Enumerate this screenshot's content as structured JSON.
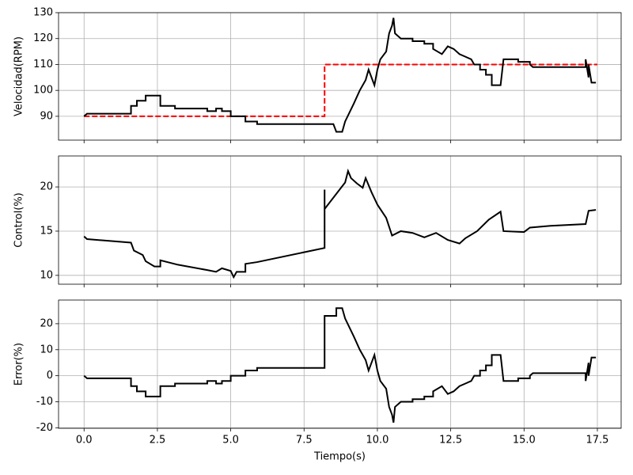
{
  "chart_data": [
    {
      "type": "line",
      "ylabel": "Velocidad(RPM)",
      "xlim": [
        -0.87,
        18.31
      ],
      "ylim": [
        80.8,
        130
      ],
      "xticks": [
        0,
        2.5,
        5,
        7.5,
        10,
        12.5,
        15,
        17.5
      ],
      "yticks": [
        90,
        100,
        110,
        120,
        130
      ],
      "grid": true,
      "series": [
        {
          "color": "#ff0000",
          "linestyle": "dashed",
          "x": [
            0,
            8.2,
            8.2,
            17.5
          ],
          "values": [
            90,
            90,
            110,
            110
          ]
        },
        {
          "color": "#000000",
          "linestyle": "solid",
          "x": [
            0,
            0.1,
            1.6,
            1.6,
            1.8,
            1.8,
            2.1,
            2.1,
            2.6,
            2.6,
            3.1,
            3.1,
            4.2,
            4.2,
            4.5,
            4.5,
            4.7,
            4.7,
            5.0,
            5.0,
            5.5,
            5.5,
            5.9,
            5.9,
            8.5,
            8.6,
            8.8,
            8.9,
            9.2,
            9.4,
            9.6,
            9.7,
            9.9,
            10.0,
            10.1,
            10.3,
            10.4,
            10.5,
            10.55,
            10.6,
            10.8,
            11.2,
            11.2,
            11.6,
            11.6,
            11.9,
            11.9,
            12.2,
            12.4,
            12.6,
            12.8,
            13.0,
            13.2,
            13.3,
            13.5,
            13.5,
            13.7,
            13.7,
            13.9,
            13.9,
            14.2,
            14.3,
            14.8,
            14.8,
            15.2,
            15.2,
            15.3,
            17.1,
            17.1,
            17.2,
            17.2,
            17.3,
            17.45
          ],
          "values": [
            90,
            91,
            91,
            94,
            94,
            96,
            96,
            98,
            98,
            94,
            94,
            93,
            93,
            92,
            92,
            93,
            93,
            92,
            92,
            90,
            90,
            88,
            88,
            87,
            87,
            84,
            84,
            88,
            95,
            100,
            104,
            108,
            102,
            108,
            112,
            115,
            122,
            125,
            128,
            122,
            120,
            120,
            119,
            119,
            118,
            118,
            116,
            114,
            117,
            116,
            114,
            113,
            112,
            110,
            110,
            108,
            108,
            106,
            106,
            102,
            102,
            112,
            112,
            111,
            111,
            110,
            109,
            109,
            112,
            105,
            110,
            103,
            103
          ]
        }
      ]
    },
    {
      "type": "line",
      "ylabel": "Control(%)",
      "xlim": [
        -0.87,
        18.31
      ],
      "ylim": [
        9.0,
        23.5
      ],
      "xticks": [
        0,
        2.5,
        5,
        7.5,
        10,
        12.5,
        15,
        17.5
      ],
      "yticks": [
        10,
        15,
        20
      ],
      "grid": true,
      "series": [
        {
          "color": "#000000",
          "linestyle": "solid",
          "x": [
            0,
            0.1,
            1.6,
            1.7,
            2.0,
            2.1,
            2.4,
            2.6,
            2.6,
            3.2,
            4.2,
            4.5,
            4.7,
            5.0,
            5.1,
            5.2,
            5.5,
            5.5,
            5.9,
            8.2,
            8.2,
            8.2,
            8.9,
            9.0,
            9.1,
            9.3,
            9.5,
            9.6,
            9.8,
            10.0,
            10.3,
            10.5,
            10.8,
            11.2,
            11.6,
            12.0,
            12.4,
            12.8,
            13.0,
            13.4,
            13.8,
            14.2,
            14.3,
            15.0,
            15.2,
            15.9,
            17.1,
            17.2,
            17.45
          ],
          "values": [
            14.4,
            14.1,
            13.7,
            12.8,
            12.3,
            11.6,
            11.0,
            11.0,
            11.7,
            11.2,
            10.6,
            10.4,
            10.8,
            10.5,
            9.8,
            10.4,
            10.4,
            11.3,
            11.5,
            13.1,
            19.7,
            17.5,
            20.5,
            21.8,
            21.0,
            20.4,
            19.9,
            21.0,
            19.4,
            18.0,
            16.5,
            14.5,
            15.0,
            14.8,
            14.3,
            14.8,
            14.0,
            13.6,
            14.2,
            15.0,
            16.3,
            17.2,
            15.0,
            14.9,
            15.4,
            15.6,
            15.8,
            17.3,
            17.4
          ]
        }
      ]
    },
    {
      "type": "line",
      "ylabel": "Error(%)",
      "xlabel": "Tiempo(s)",
      "xlim": [
        -0.87,
        18.31
      ],
      "ylim": [
        -20.2,
        29.1
      ],
      "xticks": [
        {
          "value": 0,
          "label": "0.0"
        },
        {
          "value": 2.5,
          "label": "2.5"
        },
        {
          "value": 5,
          "label": "5.0"
        },
        {
          "value": 7.5,
          "label": "7.5"
        },
        {
          "value": 10,
          "label": "10.0"
        },
        {
          "value": 12.5,
          "label": "12.5"
        },
        {
          "value": 15,
          "label": "15.0"
        },
        {
          "value": 17.5,
          "label": "17.5"
        }
      ],
      "yticks": [
        -20,
        -10,
        0,
        10,
        20
      ],
      "grid": true,
      "series": [
        {
          "color": "#000000",
          "linestyle": "solid",
          "x": [
            0,
            0.1,
            1.6,
            1.6,
            1.8,
            1.8,
            2.1,
            2.1,
            2.6,
            2.6,
            3.1,
            3.1,
            4.2,
            4.2,
            4.5,
            4.5,
            4.7,
            4.7,
            5.0,
            5.0,
            5.5,
            5.5,
            5.9,
            5.9,
            8.2,
            8.2,
            8.6,
            8.6,
            8.8,
            8.9,
            9.2,
            9.4,
            9.6,
            9.7,
            9.9,
            10.0,
            10.1,
            10.3,
            10.4,
            10.5,
            10.55,
            10.6,
            10.8,
            11.2,
            11.2,
            11.6,
            11.6,
            11.9,
            11.9,
            12.2,
            12.4,
            12.6,
            12.8,
            13.0,
            13.2,
            13.3,
            13.5,
            13.5,
            13.7,
            13.7,
            13.9,
            13.9,
            14.2,
            14.3,
            14.8,
            14.8,
            15.2,
            15.2,
            15.3,
            17.1,
            17.1,
            17.2,
            17.2,
            17.3,
            17.45
          ],
          "values": [
            0,
            -1,
            -1,
            -4,
            -4,
            -6,
            -6,
            -8,
            -8,
            -4,
            -4,
            -3,
            -3,
            -2,
            -2,
            -3,
            -3,
            -2,
            -2,
            0,
            0,
            2,
            2,
            3,
            3,
            23,
            23,
            26,
            26,
            22,
            15,
            10,
            6,
            2,
            8,
            2,
            -2,
            -5,
            -12,
            -15,
            -18,
            -12,
            -10,
            -10,
            -9,
            -9,
            -8,
            -8,
            -6,
            -4,
            -7,
            -6,
            -4,
            -3,
            -2,
            0,
            0,
            2,
            2,
            4,
            4,
            8,
            8,
            -2,
            -2,
            -1,
            -1,
            0,
            1,
            1,
            -2,
            5,
            0,
            7,
            7
          ]
        }
      ]
    }
  ]
}
